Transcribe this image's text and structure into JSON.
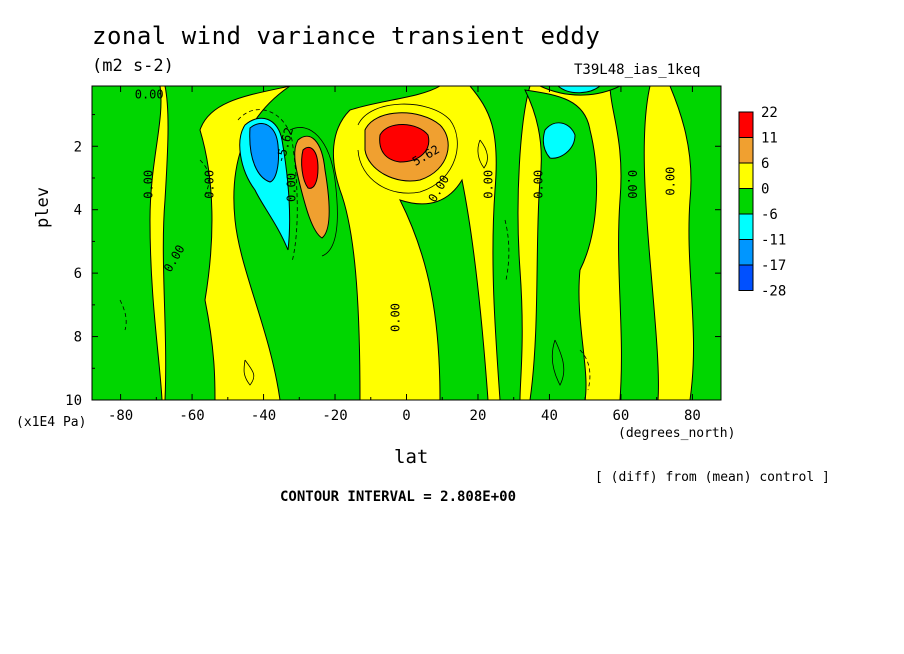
{
  "chart_data": {
    "type": "heatmap",
    "title": "zonal wind variance transient eddy",
    "units": "(m2 s-2)",
    "run_id": "T39L48_ias_1keq",
    "xlabel": "lat",
    "x_unit": "(degrees_north)",
    "ylabel": "plev",
    "y_unit": "(x1E4 Pa)",
    "note": "[ (diff) from (mean) control ]",
    "contour_interval": "CONTOUR INTERVAL = 2.808E+00",
    "x_ticks": [
      "-80",
      "-60",
      "-40",
      "-20",
      "0",
      "20",
      "40",
      "60",
      "80"
    ],
    "x_tick_values": [
      -80,
      -60,
      -40,
      -20,
      0,
      20,
      40,
      60,
      80
    ],
    "y_ticks": [
      "2",
      "4",
      "6",
      "8",
      "10"
    ],
    "y_tick_values": [
      2,
      4,
      6,
      8,
      10
    ],
    "xlim": [
      -88,
      88
    ],
    "ylim": [
      10,
      0.1
    ],
    "y_inverted": true,
    "colorbar": {
      "labels": [
        "22",
        "11",
        "6",
        "0",
        "-6",
        "-11",
        "-17",
        "-28"
      ],
      "colors": [
        "#ff0000",
        "#f0a030",
        "#ffff00",
        "#00d600",
        "#00ffff",
        "#0096ff",
        "#0050ff"
      ]
    },
    "contour_labels": [
      "0.00",
      "5.62",
      "-5.62"
    ],
    "features": [
      {
        "kind": "positive max",
        "lat": 0,
        "plev": 1.8,
        "level": "22"
      },
      {
        "kind": "positive max",
        "lat": -27,
        "plev": 2.7,
        "level": "22"
      },
      {
        "kind": "negative min",
        "lat": -40,
        "plev": 2.2,
        "level": "-17"
      },
      {
        "kind": "negative min",
        "lat": 42,
        "plev": 1.8,
        "level": "-11"
      }
    ]
  }
}
